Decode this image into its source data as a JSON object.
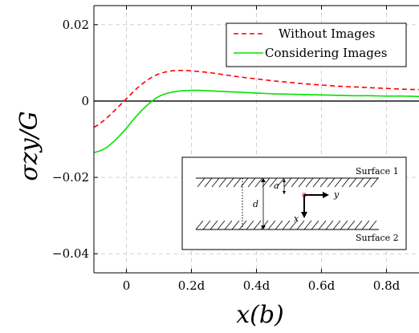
{
  "chart_data": {
    "type": "line",
    "xlabel": "x(b)",
    "ylabel": "σzy/G",
    "xlim": [
      -0.1,
      0.9
    ],
    "ylim": [
      -0.045,
      0.025
    ],
    "grid": true,
    "legend_position": "top-right",
    "x_ticks": [
      {
        "value": 0,
        "label": "0"
      },
      {
        "value": 0.2,
        "label": "0.2d"
      },
      {
        "value": 0.4,
        "label": "0.4d"
      },
      {
        "value": 0.6,
        "label": "0.6d"
      },
      {
        "value": 0.8,
        "label": "0.8d"
      }
    ],
    "y_ticks": [
      {
        "value": 0.02,
        "label": "0.02"
      },
      {
        "value": 0,
        "label": "0"
      },
      {
        "value": -0.02,
        "label": "−0.02"
      },
      {
        "value": -0.04,
        "label": "−0.04"
      }
    ],
    "series": [
      {
        "name": "Without Images",
        "color": "#ff0000",
        "dash": true,
        "x": [
          -0.1,
          -0.08,
          -0.06,
          -0.04,
          -0.02,
          0,
          0.02,
          0.04,
          0.06,
          0.08,
          0.1,
          0.12,
          0.14,
          0.16,
          0.18,
          0.2,
          0.25,
          0.3,
          0.35,
          0.4,
          0.45,
          0.5,
          0.55,
          0.6,
          0.65,
          0.7,
          0.75,
          0.8,
          0.85,
          0.9
        ],
        "y": [
          -0.0069,
          -0.0058,
          -0.0044,
          -0.0028,
          -0.0011,
          0.0006,
          0.0023,
          0.0039,
          0.0052,
          0.0063,
          0.0071,
          0.0076,
          0.0079,
          0.008,
          0.008,
          0.0079,
          0.0075,
          0.0069,
          0.0063,
          0.0058,
          0.0053,
          0.0049,
          0.0045,
          0.0042,
          0.0039,
          0.0037,
          0.0035,
          0.0033,
          0.0031,
          0.003
        ]
      },
      {
        "name": "Considering Images",
        "color": "#00e000",
        "dash": false,
        "x": [
          -0.1,
          -0.08,
          -0.06,
          -0.04,
          -0.02,
          0,
          0.02,
          0.04,
          0.06,
          0.08,
          0.1,
          0.12,
          0.14,
          0.16,
          0.18,
          0.2,
          0.22,
          0.25,
          0.3,
          0.35,
          0.4,
          0.45,
          0.5,
          0.55,
          0.6,
          0.65,
          0.7,
          0.75,
          0.8,
          0.85,
          0.9
        ],
        "y": [
          -0.0135,
          -0.013,
          -0.0121,
          -0.0107,
          -0.009,
          -0.0071,
          -0.005,
          -0.0031,
          -0.0014,
          0.0001,
          0.0012,
          0.0019,
          0.0023,
          0.0026,
          0.0027,
          0.0028,
          0.0028,
          0.0027,
          0.0025,
          0.0023,
          0.0021,
          0.0019,
          0.0018,
          0.0017,
          0.0016,
          0.0015,
          0.0014,
          0.0014,
          0.0013,
          0.0013,
          0.0012
        ]
      }
    ],
    "inset": {
      "surface1": "Surface 1",
      "surface2": "Surface 2",
      "label_a": "a",
      "label_d": "d",
      "label_x": "x",
      "label_y": "y"
    }
  }
}
